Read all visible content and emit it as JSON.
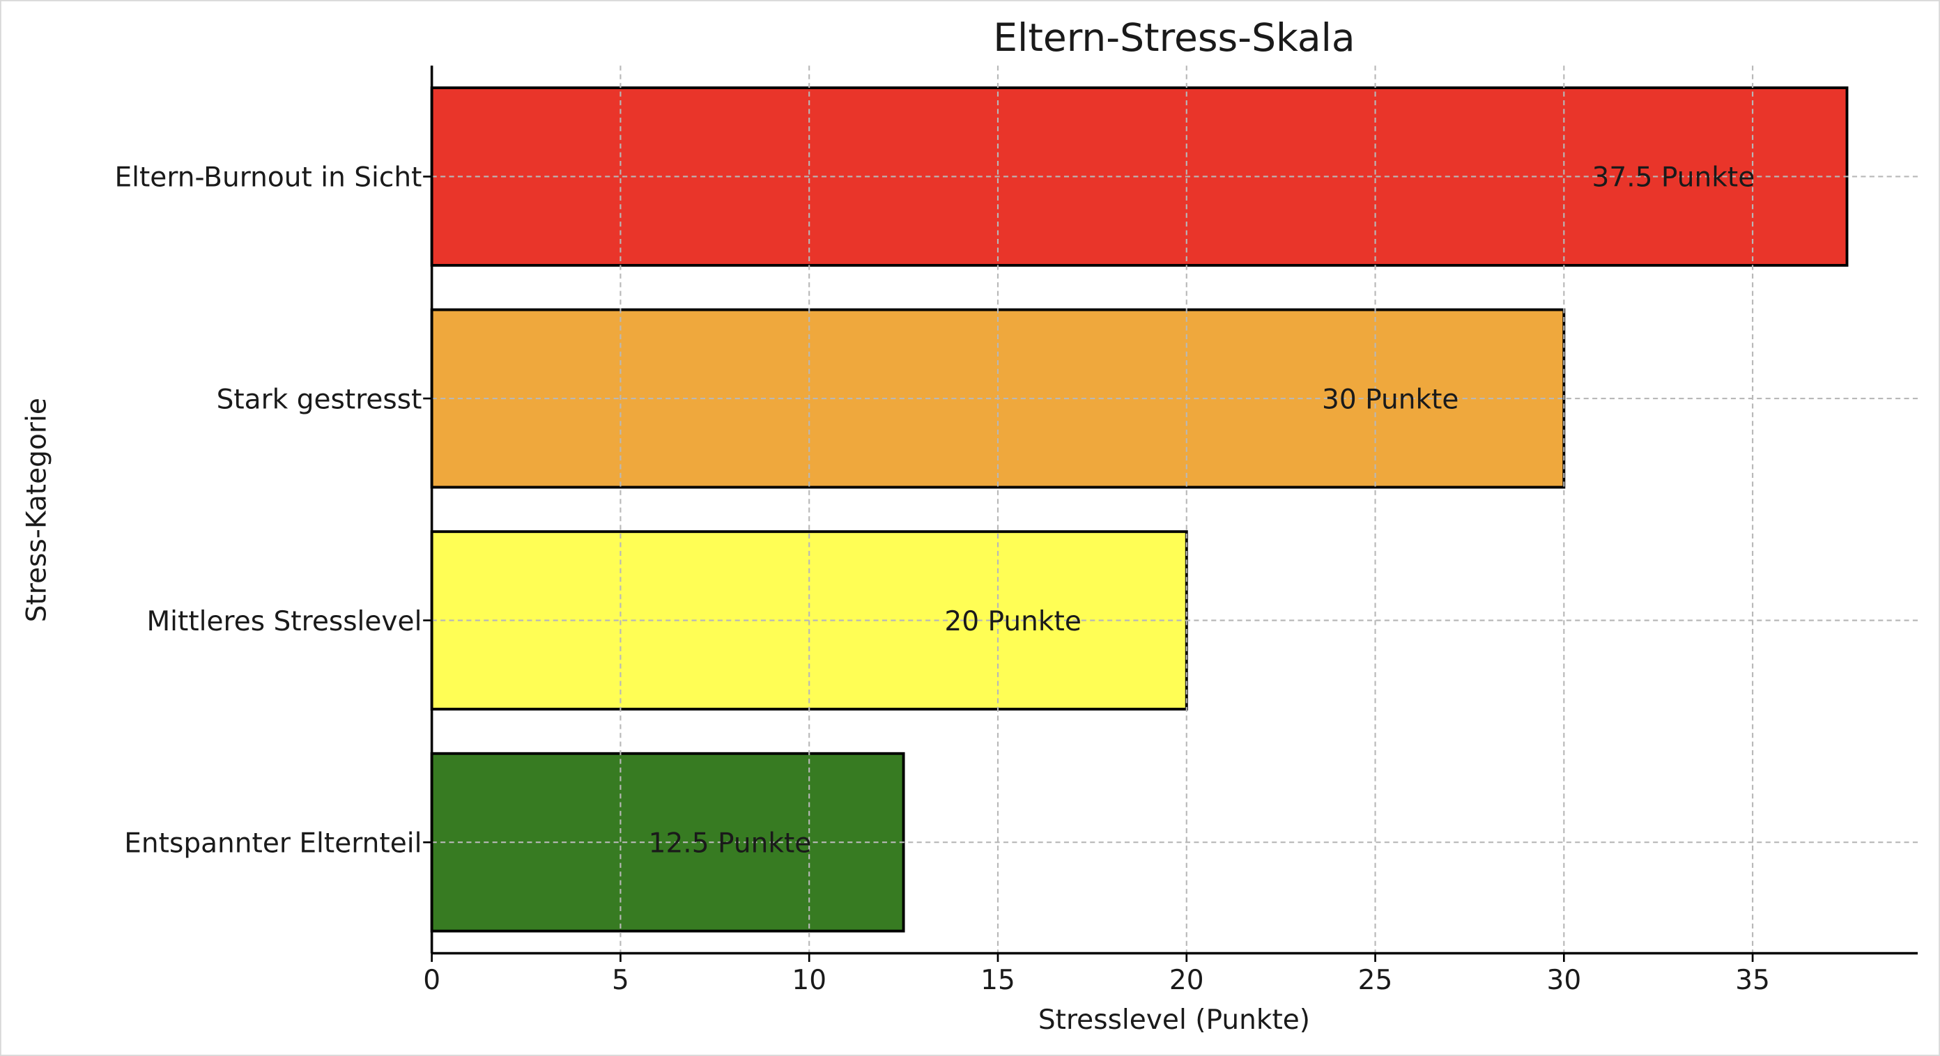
{
  "chart_data": {
    "type": "bar",
    "orientation": "horizontal",
    "title": "Eltern-Stress-Skala",
    "xlabel": "Stresslevel (Punkte)",
    "ylabel": "Stress-Kategorie",
    "categories": [
      "Entspannter Elternteil",
      "Mittleres Stresslevel",
      "Stark gestresst",
      "Eltern-Burnout in Sicht"
    ],
    "values": [
      12.5,
      20,
      30,
      37.5
    ],
    "data_labels": [
      "12.5 Punkte",
      "20 Punkte",
      "30 Punkte",
      "37.5 Punkte"
    ],
    "colors": [
      "#377b22",
      "#fffe55",
      "#efa83d",
      "#e9352a"
    ],
    "xticks": [
      0,
      5,
      10,
      15,
      20,
      25,
      30,
      35
    ],
    "xlim": [
      0,
      39.375
    ],
    "grid": true
  }
}
